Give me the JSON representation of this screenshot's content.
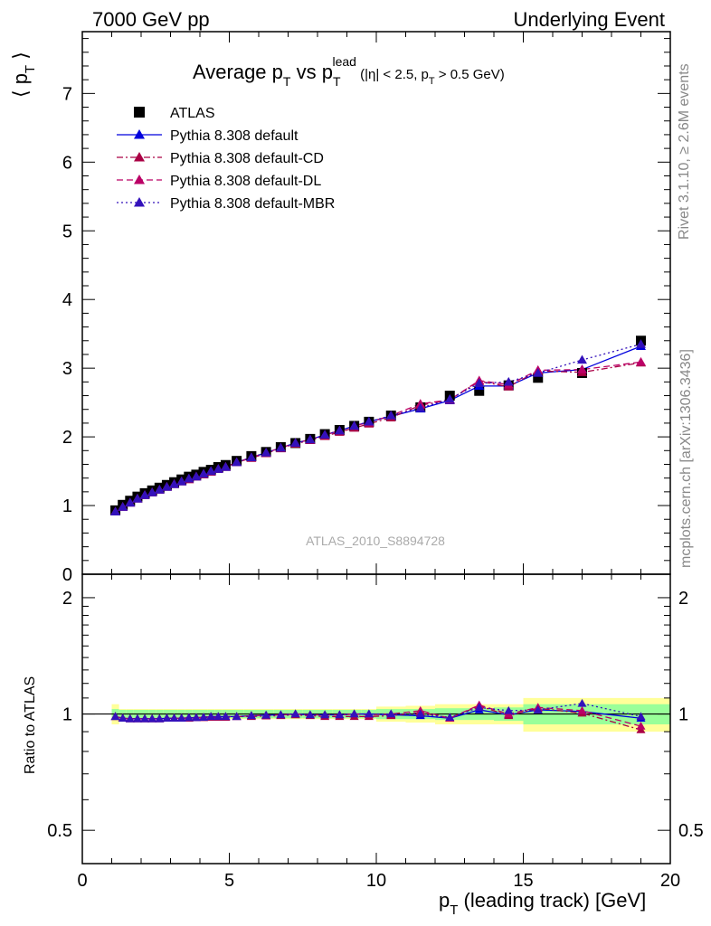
{
  "header": {
    "left": "7000 GeV pp",
    "right": "Underlying Event"
  },
  "side_text": {
    "rivet": "Rivet 3.1.10, ≥ 2.6M events",
    "mcplots": "mcplots.cern.ch [arXiv:1306.3436]"
  },
  "colors": {
    "atlas": "#000000",
    "default": "#0000dd",
    "default_cd": "#aa0044",
    "default_dl": "#bb0066",
    "default_mbr": "#3311bb",
    "band_inner": "#99ff99",
    "band_outer": "#ffff99"
  },
  "chart_data": [
    {
      "type": "line",
      "title": {
        "main": "Average p",
        "sub1": "T",
        "mid": " vs p",
        "sub2": "T",
        "sup2": "lead",
        "tail1": " (|η| < 2.5, p",
        "sub3": "T",
        "tail2": " > 0.5 GeV)"
      },
      "ylabel": "⟨ p",
      "ylabel_sub": "T",
      "ylabel_end": " ⟩",
      "watermark": "ATLAS_2010_S8894728",
      "xlim": [
        0,
        20
      ],
      "ylim": [
        0,
        7.9
      ],
      "x_ticks": [
        0,
        5,
        10,
        15,
        20
      ],
      "y_ticks": [
        0,
        1,
        2,
        3,
        4,
        5,
        6,
        7
      ],
      "legend_position": "top-left",
      "x": [
        1.125,
        1.375,
        1.625,
        1.875,
        2.125,
        2.375,
        2.625,
        2.875,
        3.125,
        3.375,
        3.625,
        3.875,
        4.125,
        4.375,
        4.625,
        4.875,
        5.25,
        5.75,
        6.25,
        6.75,
        7.25,
        7.75,
        8.25,
        8.75,
        9.25,
        9.75,
        10.5,
        11.5,
        12.5,
        13.5,
        14.5,
        15.5,
        17.0,
        19.0
      ],
      "series": [
        {
          "name": "ATLAS",
          "marker": "square",
          "color": "#000000",
          "values": [
            0.93,
            1.01,
            1.07,
            1.13,
            1.18,
            1.22,
            1.26,
            1.3,
            1.34,
            1.38,
            1.42,
            1.45,
            1.49,
            1.52,
            1.56,
            1.59,
            1.65,
            1.72,
            1.78,
            1.85,
            1.91,
            1.97,
            2.04,
            2.1,
            2.16,
            2.22,
            2.31,
            2.43,
            2.6,
            2.67,
            2.75,
            2.86,
            2.93,
            3.4
          ]
        },
        {
          "name": "Pythia 8.308 default",
          "marker": "triangle",
          "dash": "solid",
          "color": "#0000dd",
          "values": [
            0.91,
            0.98,
            1.04,
            1.1,
            1.15,
            1.19,
            1.23,
            1.27,
            1.31,
            1.35,
            1.39,
            1.42,
            1.46,
            1.5,
            1.53,
            1.56,
            1.63,
            1.7,
            1.77,
            1.84,
            1.91,
            1.96,
            2.03,
            2.09,
            2.16,
            2.22,
            2.3,
            2.41,
            2.53,
            2.74,
            2.74,
            2.93,
            2.98,
            3.32
          ]
        },
        {
          "name": "Pythia 8.308 default-CD",
          "marker": "triangle",
          "dash": "dashdot",
          "color": "#aa0044",
          "values": [
            0.91,
            0.98,
            1.04,
            1.1,
            1.15,
            1.19,
            1.23,
            1.27,
            1.31,
            1.35,
            1.38,
            1.42,
            1.45,
            1.49,
            1.53,
            1.56,
            1.63,
            1.69,
            1.76,
            1.83,
            1.9,
            1.95,
            2.01,
            2.07,
            2.13,
            2.19,
            2.28,
            2.46,
            2.54,
            2.81,
            2.73,
            2.96,
            2.94,
            3.08
          ]
        },
        {
          "name": "Pythia 8.308 default-DL",
          "marker": "triangle",
          "dash": "dashed",
          "color": "#bb0066",
          "values": [
            0.91,
            0.98,
            1.04,
            1.1,
            1.15,
            1.19,
            1.23,
            1.27,
            1.31,
            1.35,
            1.39,
            1.42,
            1.46,
            1.5,
            1.53,
            1.56,
            1.63,
            1.7,
            1.77,
            1.84,
            1.91,
            1.96,
            2.03,
            2.09,
            2.16,
            2.21,
            2.31,
            2.48,
            2.54,
            2.82,
            2.76,
            2.97,
            2.98,
            3.09
          ]
        },
        {
          "name": "Pythia 8.308 default-MBR",
          "marker": "triangle",
          "dash": "dotted",
          "color": "#3311bb",
          "values": [
            0.91,
            0.98,
            1.04,
            1.1,
            1.15,
            1.19,
            1.23,
            1.27,
            1.31,
            1.35,
            1.39,
            1.42,
            1.46,
            1.5,
            1.53,
            1.56,
            1.63,
            1.7,
            1.77,
            1.84,
            1.91,
            1.96,
            2.03,
            2.09,
            2.16,
            2.22,
            2.31,
            2.42,
            2.55,
            2.78,
            2.8,
            2.93,
            3.12,
            3.35
          ]
        }
      ]
    },
    {
      "type": "line",
      "ylabel": "Ratio to ATLAS",
      "xlabel": "p",
      "xlabel_sub": "T",
      "xlabel_end": " (leading track) [GeV]",
      "xlim": [
        0,
        20
      ],
      "ylim": [
        0.41,
        2.3
      ],
      "y_scale": "log",
      "x_ticks": [
        0,
        5,
        10,
        15,
        20
      ],
      "y_ticks": [
        0.5,
        1,
        2
      ],
      "band_edges": [
        1.0,
        1.25,
        1.5,
        1.75,
        2.0,
        2.25,
        2.5,
        2.75,
        3.0,
        3.25,
        3.5,
        3.75,
        4.0,
        4.25,
        4.5,
        4.75,
        5.0,
        5.5,
        6.0,
        6.5,
        7.0,
        7.5,
        8.0,
        8.5,
        9.0,
        9.5,
        10.0,
        11.0,
        12.0,
        13.0,
        14.0,
        15.0,
        16.0,
        18.0,
        20.0
      ],
      "band_inner_halfwidth": [
        0.03,
        0.025,
        0.025,
        0.025,
        0.025,
        0.025,
        0.025,
        0.025,
        0.025,
        0.025,
        0.025,
        0.025,
        0.025,
        0.025,
        0.025,
        0.025,
        0.025,
        0.025,
        0.025,
        0.025,
        0.025,
        0.025,
        0.025,
        0.025,
        0.025,
        0.025,
        0.03,
        0.03,
        0.035,
        0.035,
        0.04,
        0.06,
        0.06,
        0.06
      ],
      "band_outer_halfwidth": [
        0.06,
        0.03,
        0.03,
        0.03,
        0.03,
        0.03,
        0.03,
        0.03,
        0.03,
        0.03,
        0.03,
        0.03,
        0.03,
        0.03,
        0.03,
        0.03,
        0.03,
        0.03,
        0.03,
        0.03,
        0.03,
        0.03,
        0.03,
        0.03,
        0.03,
        0.03,
        0.045,
        0.05,
        0.06,
        0.06,
        0.06,
        0.1,
        0.1,
        0.1
      ],
      "series": [
        {
          "name": "Pythia 8.308 default",
          "color": "#0000dd",
          "dash": "solid",
          "values": [
            0.985,
            0.975,
            0.972,
            0.972,
            0.972,
            0.972,
            0.972,
            0.975,
            0.975,
            0.975,
            0.978,
            0.978,
            0.98,
            0.985,
            0.985,
            0.985,
            0.985,
            0.99,
            0.993,
            0.995,
            1.0,
            0.995,
            0.995,
            0.995,
            1.0,
            1.0,
            0.995,
            0.99,
            0.975,
            1.025,
            0.995,
            1.025,
            1.015,
            0.975
          ]
        },
        {
          "name": "Pythia 8.308 default-CD",
          "color": "#aa0044",
          "dash": "dashdot",
          "values": [
            0.985,
            0.975,
            0.972,
            0.972,
            0.972,
            0.972,
            0.972,
            0.975,
            0.975,
            0.975,
            0.975,
            0.978,
            0.978,
            0.98,
            0.98,
            0.98,
            0.985,
            0.985,
            0.988,
            0.99,
            0.995,
            0.99,
            0.985,
            0.985,
            0.985,
            0.985,
            0.99,
            1.01,
            0.975,
            1.05,
            0.99,
            1.035,
            1.005,
            0.91
          ]
        },
        {
          "name": "Pythia 8.308 default-DL",
          "color": "#bb0066",
          "dash": "dashed",
          "values": [
            0.985,
            0.975,
            0.972,
            0.972,
            0.972,
            0.972,
            0.972,
            0.975,
            0.975,
            0.975,
            0.978,
            0.978,
            0.98,
            0.985,
            0.985,
            0.985,
            0.985,
            0.99,
            0.993,
            0.995,
            1.0,
            0.995,
            0.995,
            0.995,
            1.0,
            0.995,
            1.0,
            1.02,
            0.975,
            1.055,
            1.0,
            1.04,
            1.02,
            0.93
          ]
        },
        {
          "name": "Pythia 8.308 default-MBR",
          "color": "#3311bb",
          "dash": "dotted",
          "values": [
            0.985,
            0.975,
            0.972,
            0.972,
            0.972,
            0.972,
            0.972,
            0.975,
            0.975,
            0.975,
            0.978,
            0.978,
            0.98,
            0.985,
            0.985,
            0.985,
            0.985,
            0.99,
            0.993,
            0.995,
            1.0,
            0.995,
            0.995,
            0.995,
            1.0,
            1.0,
            1.0,
            1.0,
            0.98,
            1.04,
            1.02,
            1.025,
            1.065,
            0.985
          ]
        }
      ]
    }
  ]
}
